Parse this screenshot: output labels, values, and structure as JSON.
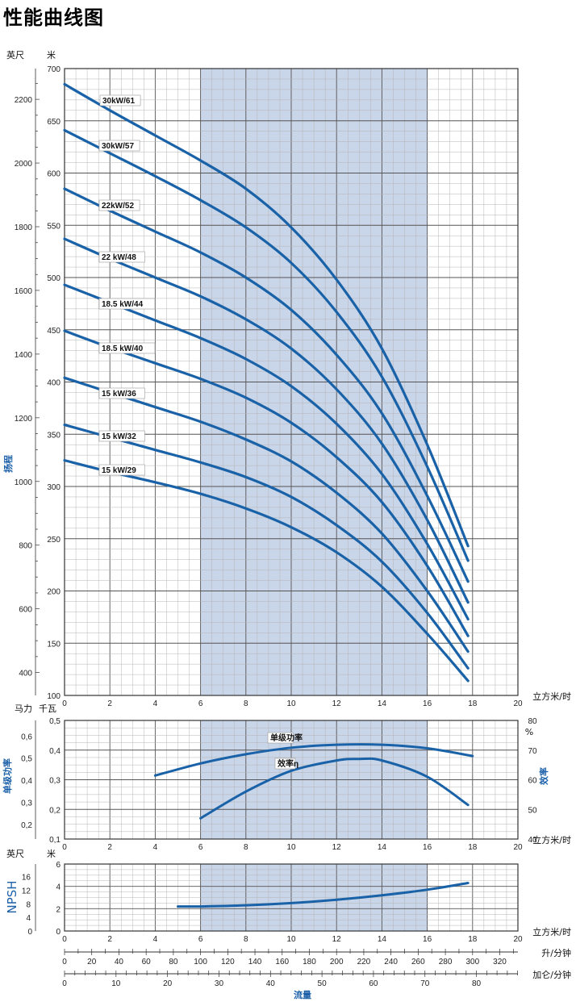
{
  "title": "性能曲线图",
  "colors": {
    "curve": "#1a62a8",
    "shade": "#c9d5e8",
    "grid_major": "#555555",
    "grid_minor": "#b5b5b5",
    "axis_label": "#1a5fa8"
  },
  "chart_data": [
    {
      "type": "line",
      "name": "head",
      "ylabel": "扬程",
      "unit_left": "英尺",
      "unit_right": "米",
      "xunit": "立方米/时",
      "xlim": [
        0,
        20
      ],
      "ylim": [
        100,
        700
      ],
      "x_ticks": [
        0,
        2,
        4,
        6,
        8,
        10,
        12,
        14,
        16,
        18,
        20
      ],
      "y_ticks": [
        100,
        150,
        200,
        250,
        300,
        350,
        400,
        450,
        500,
        550,
        600,
        650,
        700
      ],
      "y2_ticks": [
        400,
        600,
        800,
        1000,
        1200,
        1400,
        1600,
        1800,
        2000,
        2200
      ],
      "shaded_range": [
        6,
        16
      ],
      "series": [
        {
          "name": "30kW/61",
          "x": [
            0,
            2,
            4,
            6,
            8,
            10,
            12,
            14,
            16,
            17.8
          ],
          "y": [
            685,
            660,
            636,
            612,
            585,
            548,
            498,
            432,
            340,
            243
          ]
        },
        {
          "name": "30kW/57",
          "x": [
            0,
            2,
            4,
            6,
            8,
            10,
            12,
            14,
            16,
            17.8
          ],
          "y": [
            641,
            619,
            597,
            574,
            548,
            514,
            467,
            405,
            319,
            229
          ]
        },
        {
          "name": "22kW/52",
          "x": [
            0,
            2,
            4,
            6,
            8,
            10,
            12,
            14,
            16,
            17.8
          ],
          "y": [
            585,
            564,
            544,
            524,
            500,
            469,
            426,
            370,
            291,
            209
          ]
        },
        {
          "name": "22 kW/48",
          "x": [
            0,
            2,
            4,
            6,
            8,
            10,
            12,
            14,
            16,
            17.8
          ],
          "y": [
            537,
            518,
            500,
            482,
            460,
            432,
            393,
            341,
            268,
            189
          ]
        },
        {
          "name": "18.5 kW/44",
          "x": [
            0,
            2,
            4,
            6,
            8,
            10,
            12,
            14,
            16,
            17.8
          ],
          "y": [
            493,
            476,
            459,
            442,
            422,
            396,
            360,
            312,
            245,
            173
          ]
        },
        {
          "name": "18.5 kW/40",
          "x": [
            0,
            2,
            4,
            6,
            8,
            10,
            12,
            14,
            16,
            17.8
          ],
          "y": [
            449,
            433,
            418,
            403,
            385,
            361,
            328,
            285,
            224,
            157
          ]
        },
        {
          "name": "15 kW/36",
          "x": [
            0,
            2,
            4,
            6,
            8,
            10,
            12,
            14,
            16,
            17.8
          ],
          "y": [
            404,
            390,
            376,
            362,
            345,
            324,
            294,
            255,
            200,
            142
          ]
        },
        {
          "name": "15 kW/32",
          "x": [
            0,
            2,
            4,
            6,
            8,
            10,
            12,
            14,
            16,
            17.8
          ],
          "y": [
            359,
            347,
            335,
            323,
            309,
            290,
            263,
            228,
            179,
            126
          ]
        },
        {
          "name": "15 kW/29",
          "x": [
            0,
            2,
            4,
            6,
            8,
            10,
            12,
            14,
            16,
            17.8
          ],
          "y": [
            325,
            314,
            304,
            293,
            279,
            261,
            237,
            204,
            159,
            114
          ]
        }
      ]
    },
    {
      "type": "line",
      "name": "power_efficiency",
      "ylabel": "单级功率",
      "y2label": "效率",
      "unit_left": "马力",
      "unit_right": "千瓦",
      "y2_unit": "%",
      "xunit": "立方米/时",
      "xlim": [
        0,
        20
      ],
      "ylim": [
        0.1,
        0.5
      ],
      "y2lim": [
        40,
        80
      ],
      "x_ticks": [
        0,
        2,
        4,
        6,
        8,
        10,
        12,
        14,
        16,
        18,
        20
      ],
      "y_ticks": [
        0.1,
        0.2,
        0.3,
        0.4,
        0.5
      ],
      "y_tick_labels": [
        "0,1",
        "0,2",
        "0,3",
        "0,4",
        "0,5"
      ],
      "y2_ticks": [
        40,
        50,
        60,
        70,
        80
      ],
      "hp_ticks": [
        0.2,
        0.3,
        0.4,
        0.5,
        0.6
      ],
      "hp_tick_labels": [
        "0,2",
        "0,3",
        "0,4",
        "0,5",
        "0,6"
      ],
      "shaded_range": [
        6,
        16
      ],
      "series": [
        {
          "name": "单级功率",
          "x": [
            4,
            6,
            8,
            10,
            12,
            14,
            16,
            18
          ],
          "y": [
            0.314,
            0.355,
            0.386,
            0.408,
            0.418,
            0.418,
            0.406,
            0.38
          ]
        },
        {
          "name": "效率η",
          "x": [
            6,
            8,
            10,
            12,
            13,
            14,
            16,
            17.8
          ],
          "y": [
            47,
            56,
            63,
            66.5,
            67,
            66.5,
            61,
            51.5
          ]
        }
      ]
    },
    {
      "type": "line",
      "name": "npsh",
      "ylabel": "NPSH",
      "unit_left": "英尺",
      "unit_right": "米",
      "xunit": "立方米/时",
      "xlim": [
        0,
        20
      ],
      "ylim": [
        0,
        6
      ],
      "x_ticks": [
        0,
        2,
        4,
        6,
        8,
        10,
        12,
        14,
        16,
        18,
        20
      ],
      "y_ticks": [
        0,
        2,
        4,
        6
      ],
      "ft_ticks": [
        4,
        8,
        12,
        16
      ],
      "shaded_range": [
        6,
        16
      ],
      "series": [
        {
          "name": "NPSH",
          "x": [
            5,
            6,
            8,
            10,
            12,
            14,
            16,
            17.8
          ],
          "y": [
            2.2,
            2.2,
            2.3,
            2.5,
            2.8,
            3.2,
            3.7,
            4.3
          ]
        }
      ]
    }
  ],
  "extra_axes": [
    {
      "unit": "升/分钟",
      "ticks": [
        0,
        20,
        40,
        60,
        80,
        100,
        120,
        140,
        160,
        180,
        200,
        220,
        240,
        260,
        280,
        300,
        320
      ]
    },
    {
      "unit": "加仑/分钟",
      "ticks": [
        0,
        10,
        20,
        30,
        40,
        50,
        60,
        70,
        80
      ]
    }
  ],
  "xlabel": "流量"
}
